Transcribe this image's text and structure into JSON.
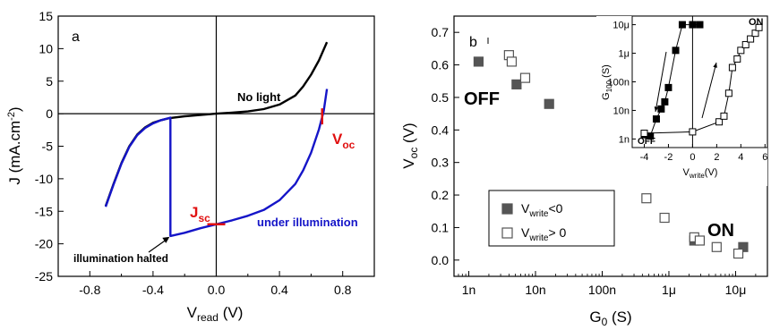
{
  "chart_data": [
    {
      "type": "line",
      "panel_label": "a",
      "xlabel": "V",
      "xlabel_sub": "read",
      "xlabel_unit": "(V)",
      "ylabel": "J (mA.cm",
      "ylabel_sup": "-2",
      "ylabel_end": ")",
      "xlim": [
        -1.0,
        1.0
      ],
      "ylim": [
        -25,
        15
      ],
      "xticks": [
        -0.8,
        -0.4,
        0.0,
        0.4,
        0.8
      ],
      "xtick_labels": [
        "-0.8",
        "-0.4",
        "0.0",
        "0.4",
        "0.8"
      ],
      "yticks": [
        -25,
        -20,
        -15,
        -10,
        -5,
        0,
        5,
        10,
        15
      ],
      "ytick_labels": [
        "-25",
        "-20",
        "-15",
        "-10",
        "-5",
        "0",
        "5",
        "10",
        "15"
      ],
      "series": [
        {
          "name": "No light",
          "color": "#000000",
          "x": [
            -0.7,
            -0.65,
            -0.6,
            -0.55,
            -0.5,
            -0.45,
            -0.4,
            -0.35,
            -0.3,
            -0.2,
            -0.1,
            0.0,
            0.1,
            0.2,
            0.3,
            0.4,
            0.5,
            0.55,
            0.6,
            0.65,
            0.7
          ],
          "y": [
            -14.2,
            -10.8,
            -7.6,
            -5.0,
            -3.2,
            -2.1,
            -1.4,
            -1.0,
            -0.7,
            -0.4,
            -0.2,
            0.0,
            0.15,
            0.35,
            0.7,
            1.4,
            2.8,
            4.2,
            6.0,
            8.2,
            11.0
          ]
        },
        {
          "name": "under illumination",
          "color": "#1515c8",
          "x": [
            -0.7,
            -0.65,
            -0.6,
            -0.55,
            -0.5,
            -0.45,
            -0.4,
            -0.35,
            -0.31,
            -0.29,
            -0.29,
            -0.2,
            -0.1,
            0.0,
            0.1,
            0.2,
            0.3,
            0.4,
            0.5,
            0.55,
            0.6,
            0.65,
            0.68,
            0.7
          ],
          "y": [
            -14.3,
            -10.9,
            -7.7,
            -5.1,
            -3.3,
            -2.2,
            -1.5,
            -1.0,
            -0.75,
            -0.6,
            -18.8,
            -18.3,
            -17.6,
            -17.0,
            -16.4,
            -15.7,
            -14.8,
            -13.3,
            -10.8,
            -8.7,
            -6.0,
            -2.4,
            0.4,
            3.8
          ]
        }
      ],
      "annotations": {
        "no_light": "No light",
        "under_illumination": "under illumination",
        "halted": "illumination halted",
        "voc_main": "V",
        "voc_sub": "oc",
        "jsc_main": "J",
        "jsc_sub": "sc"
      },
      "marker_points": {
        "voc": {
          "x": 0.67,
          "y": 0
        },
        "jsc": {
          "x": 0.0,
          "y": -17.0
        },
        "halted": {
          "x": -0.29,
          "y": -18.8
        }
      },
      "grid": false
    },
    {
      "type": "scatter",
      "panel_label": "b",
      "xscale": "log",
      "xlabel": "G",
      "xlabel_sub": "0",
      "xlabel_unit": "(S)",
      "ylabel": "V",
      "ylabel_sub": "oc",
      "ylabel_unit": "(V)",
      "xlim": [
        6e-10,
        3e-05
      ],
      "ylim": [
        -0.05,
        0.75
      ],
      "xticks": [
        1e-09,
        1e-08,
        1e-07,
        1e-06,
        1e-05
      ],
      "xtick_labels": [
        "1n",
        "10n",
        "100n",
        "1μ",
        "10μ"
      ],
      "yticks": [
        0.0,
        0.1,
        0.2,
        0.3,
        0.4,
        0.5,
        0.6,
        0.7
      ],
      "ytick_labels": [
        "0.0",
        "0.1",
        "0.2",
        "0.3",
        "0.4",
        "0.5",
        "0.6",
        "0.7"
      ],
      "series": [
        {
          "name": "V<0",
          "name_main": "V",
          "name_sub": "write",
          "name_rest": "<0",
          "marker": "filled-square",
          "color": "#555555",
          "x": [
            1.4e-09,
            5.2e-09,
            1.6e-08,
            1.3e-07,
            2.4e-06,
            1.3e-05
          ],
          "y": [
            0.61,
            0.54,
            0.48,
            0.28,
            0.06,
            0.04
          ]
        },
        {
          "name": "V> 0",
          "name_main": "V",
          "name_sub": "write",
          "name_rest": "> 0",
          "marker": "open-square",
          "color": "#555555",
          "x": [
            4e-09,
            4.4e-09,
            7e-09,
            4.6e-07,
            8.6e-07,
            2.4e-06,
            2.9e-06,
            5.2e-06,
            1.1e-05
          ],
          "y": [
            0.63,
            0.61,
            0.56,
            0.19,
            0.13,
            0.07,
            0.06,
            0.04,
            0.02
          ]
        }
      ],
      "labels": {
        "off": "OFF",
        "on": "ON"
      },
      "legend_position": "center-left",
      "grid": false,
      "inset": {
        "type": "line",
        "xlabel": "V",
        "xlabel_sub": "write",
        "xlabel_unit": "(V)",
        "ylabel": "G",
        "ylabel_sub": "100",
        "ylabel_unit": "(S)",
        "xlim": [
          -5,
          6.2
        ],
        "ylim_log": [
          -9.3,
          -4.7
        ],
        "xticks": [
          -4,
          -2,
          0,
          2,
          4,
          6
        ],
        "xtick_labels": [
          "-4",
          "-2",
          "0",
          "2",
          "4",
          "6"
        ],
        "yticks_log": [
          -9,
          -8,
          -7,
          -6,
          -5
        ],
        "ytick_labels": [
          "1n",
          "10n",
          "100n",
          "1μ",
          "10μ"
        ],
        "series": [
          {
            "name": "V<0",
            "marker": "filled-square",
            "x": [
              -4,
              -3.5,
              -3.0,
              -2.6,
              -2.3,
              -2.0,
              -1.4,
              -0.85,
              0.0,
              0.6
            ],
            "y_log": [
              -8.85,
              -8.9,
              -8.3,
              -7.95,
              -7.7,
              -7.2,
              -5.9,
              -5.0,
              -5.0,
              -5.0
            ]
          },
          {
            "name": "V> 0",
            "marker": "open-square",
            "x": [
              -4,
              0.0,
              2.2,
              2.6,
              3.0,
              3.3,
              3.7,
              4.0,
              4.4,
              4.8,
              5.2,
              5.5
            ],
            "y_log": [
              -8.8,
              -8.75,
              -8.4,
              -8.2,
              -7.4,
              -6.5,
              -6.2,
              -5.9,
              -5.7,
              -5.5,
              -5.3,
              -5.1
            ]
          }
        ],
        "labels": {
          "off": "OFF",
          "on": "ON"
        }
      }
    }
  ]
}
